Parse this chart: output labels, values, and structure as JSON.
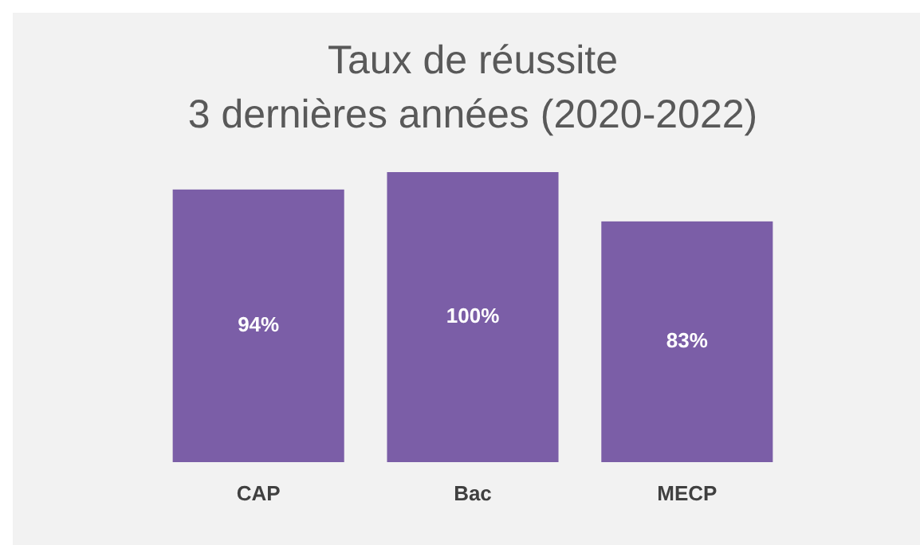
{
  "chart_data": {
    "type": "bar",
    "title": "Taux de réussite\n3 dernières années (2020-2022)",
    "categories": [
      "CAP",
      "Bac",
      "MECP"
    ],
    "values": [
      94,
      100,
      83
    ],
    "value_labels": [
      "94%",
      "100%",
      "83%"
    ],
    "color": "#7b5ea7"
  }
}
